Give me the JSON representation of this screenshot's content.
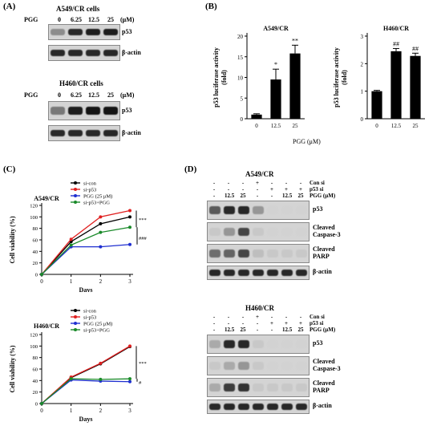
{
  "panelA": {
    "letter": "(A)",
    "top": {
      "title": "A549/CR cells",
      "treatment_label": "PGG",
      "doses": [
        "0",
        "6.25",
        "12.5",
        "25"
      ],
      "unit": "(μM)",
      "bands": [
        "p53",
        "β-actin"
      ],
      "p53_intensity": [
        0.35,
        0.85,
        0.9,
        0.9
      ],
      "actin_intensity": [
        0.85,
        0.85,
        0.85,
        0.85
      ]
    },
    "bottom": {
      "title": "H460/CR cells",
      "treatment_label": "PGG",
      "doses": [
        "0",
        "6.25",
        "12.5",
        "25"
      ],
      "unit": "(μM)",
      "bands": [
        "p53",
        "β-actin"
      ],
      "p53_intensity": [
        0.45,
        0.9,
        0.95,
        0.95
      ],
      "actin_intensity": [
        0.85,
        0.85,
        0.85,
        0.85
      ]
    }
  },
  "panelB": {
    "letter": "(B)",
    "xlabel": "PGG (μM)"
  },
  "panelC": {
    "letter": "(C)",
    "xlabel": "Days"
  },
  "panelD": {
    "letter": "(D)",
    "top": {
      "title": "A549/CR",
      "row_labels": [
        "Con si",
        "p53 si",
        "PGG (μM)"
      ],
      "rows": [
        [
          "-",
          "-",
          "-",
          "+",
          "-",
          "-",
          "-"
        ],
        [
          "-",
          "-",
          "-",
          "-",
          "+",
          "+",
          "+"
        ],
        [
          "-",
          "12.5",
          "25",
          "-",
          "-",
          "12.5",
          "25"
        ]
      ],
      "bands": [
        "p53",
        "Cleaved\nCaspase-3",
        "Cleaved\nPARP",
        "β-actin"
      ],
      "intensities": [
        [
          0.6,
          0.85,
          0.85,
          0.3,
          0,
          0,
          0
        ],
        [
          0.05,
          0.3,
          0.7,
          0.05,
          0,
          0,
          0
        ],
        [
          0.5,
          0.55,
          0.7,
          0.1,
          0.05,
          0.05,
          0.05
        ],
        [
          0.85,
          0.85,
          0.85,
          0.85,
          0.85,
          0.85,
          0.85
        ]
      ]
    },
    "bottom": {
      "title": "H460/CR",
      "row_labels": [
        "Con si",
        "p53 si",
        "PGG (μM)"
      ],
      "rows": [
        [
          "-",
          "-",
          "-",
          "+",
          "-",
          "-",
          "-"
        ],
        [
          "-",
          "-",
          "-",
          "-",
          "+",
          "+",
          "+"
        ],
        [
          "-",
          "12.5",
          "25",
          "-",
          "-",
          "12.5",
          "25"
        ]
      ],
      "bands": [
        "p53",
        "Cleaved\nCaspase-3",
        "Cleaved\nPARP",
        "β-actin"
      ],
      "intensities": [
        [
          0.2,
          0.85,
          0.85,
          0.05,
          0,
          0,
          0
        ],
        [
          0.05,
          0.2,
          0.3,
          0.05,
          0,
          0,
          0
        ],
        [
          0.2,
          0.75,
          0.8,
          0.05,
          0.05,
          0.05,
          0.05
        ],
        [
          0.85,
          0.85,
          0.85,
          0.85,
          0.85,
          0.85,
          0.85
        ]
      ]
    }
  },
  "chart_data": [
    {
      "type": "bar",
      "title": "A549/CR",
      "ylabel": "p53 luciferase activity\n(fold)",
      "xlabel": "PGG (μM)",
      "categories": [
        "0",
        "12.5",
        "25"
      ],
      "values": [
        1.0,
        9.5,
        15.8
      ],
      "errors": [
        0.2,
        2.5,
        2.0
      ],
      "annotations": [
        "",
        "*",
        "**"
      ],
      "ylim": [
        0,
        20
      ],
      "yticks": [
        "0",
        "5",
        "10",
        "15",
        "20"
      ]
    },
    {
      "type": "bar",
      "title": "H460/CR",
      "ylabel": "p53 luciferase activity\n(fold)",
      "xlabel": "PGG (μM)",
      "categories": [
        "0",
        "12.5",
        "25"
      ],
      "values": [
        1.0,
        2.45,
        2.28
      ],
      "errors": [
        0.03,
        0.1,
        0.1
      ],
      "annotations": [
        "",
        "##",
        "##"
      ],
      "ylim": [
        0,
        3
      ],
      "yticks": [
        "0",
        "1",
        "2",
        "3"
      ]
    },
    {
      "type": "line",
      "title": "A549/CR",
      "ylabel": "Cell viability (%)",
      "xlabel": "Days",
      "x": [
        0,
        1,
        2,
        3
      ],
      "ylim": [
        0,
        120
      ],
      "yticks": [
        "0",
        "20",
        "40",
        "60",
        "80",
        "100",
        "120"
      ],
      "series": [
        {
          "name": "si-con",
          "color": "#000000",
          "values": [
            0,
            57,
            88,
            100
          ]
        },
        {
          "name": "si-p53",
          "color": "#e02020",
          "values": [
            0,
            61,
            100,
            111
          ]
        },
        {
          "name": "PGG (25 μM)",
          "color": "#1f2fd0",
          "values": [
            0,
            48,
            48,
            52
          ]
        },
        {
          "name": "si-p53+PGG",
          "color": "#1a8a2a",
          "values": [
            0,
            51,
            73,
            82
          ]
        }
      ],
      "annotations": [
        "***",
        "###"
      ],
      "legend": "top"
    },
    {
      "type": "line",
      "title": "H460/CR",
      "ylabel": "Cell viability (%)",
      "xlabel": "Days",
      "x": [
        0,
        1,
        2,
        3
      ],
      "ylim": [
        0,
        120
      ],
      "yticks": [
        "0",
        "20",
        "40",
        "60",
        "80",
        "100",
        "120"
      ],
      "series": [
        {
          "name": "si-con",
          "color": "#000000",
          "values": [
            0,
            45,
            69,
            99
          ]
        },
        {
          "name": "si-p53",
          "color": "#e02020",
          "values": [
            0,
            46,
            70,
            100
          ]
        },
        {
          "name": "PGG (25 μM)",
          "color": "#1f2fd0",
          "values": [
            0,
            41,
            39,
            38
          ]
        },
        {
          "name": "si-p53+PGG",
          "color": "#1a8a2a",
          "values": [
            0,
            43,
            42,
            43
          ]
        }
      ],
      "annotations": [
        "***",
        "#"
      ],
      "legend": "top"
    }
  ]
}
